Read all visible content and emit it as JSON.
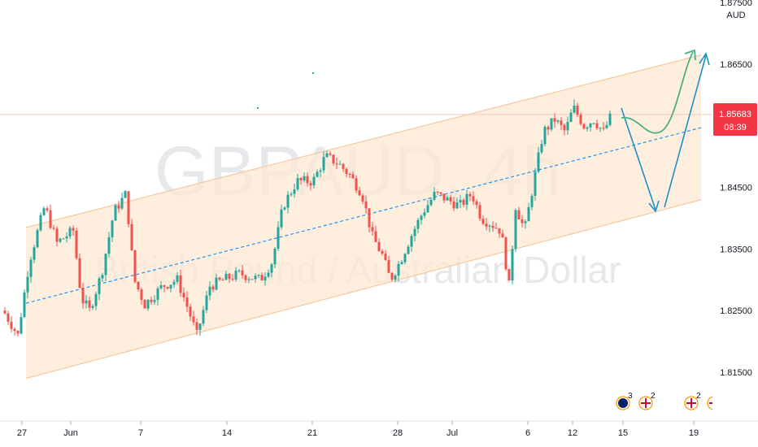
{
  "chart_data": {
    "type": "candlestick",
    "symbol_watermark": "GBPAUD, 4h",
    "description_watermark": "British Pound / Australian Dollar",
    "currency": "AUD",
    "price_axis": {
      "ticks": [
        "1.87500",
        "1.86500",
        "1.85500",
        "1.84500",
        "1.83500",
        "1.82500",
        "1.81500"
      ],
      "values": [
        1.875,
        1.865,
        1.855,
        1.845,
        1.835,
        1.825,
        1.815
      ]
    },
    "time_axis": {
      "ticks": [
        "27",
        "Jun",
        "7",
        "14",
        "21",
        "28",
        "Jul",
        "6",
        "12",
        "15",
        "19"
      ]
    },
    "last_price": {
      "value": "1.85683",
      "countdown": "08:39",
      "color": "#f23645"
    },
    "colors": {
      "up": "#26a69a",
      "down": "#ef5350",
      "channel_fill": "#fde8d3",
      "channel_border": "#f7c9a0",
      "midline": "#2196f3",
      "arrow_down": "#1e90c9",
      "arrow_up": "#4caf84",
      "price_line": "#f8c9c5"
    },
    "channel": {
      "upper": [
        [
          1.8385,
          1.8665
        ]
      ],
      "lower": [
        [
          1.814,
          1.843
        ]
      ],
      "mid": [
        [
          1.8262,
          1.8547
        ]
      ]
    },
    "event_markers": [
      {
        "flag": "AUD",
        "count": "3"
      },
      {
        "flag": "GBP",
        "count": "2"
      },
      {
        "flag": "GBP",
        "count": "2"
      },
      {
        "flag": "GBP",
        "count": ""
      }
    ]
  }
}
